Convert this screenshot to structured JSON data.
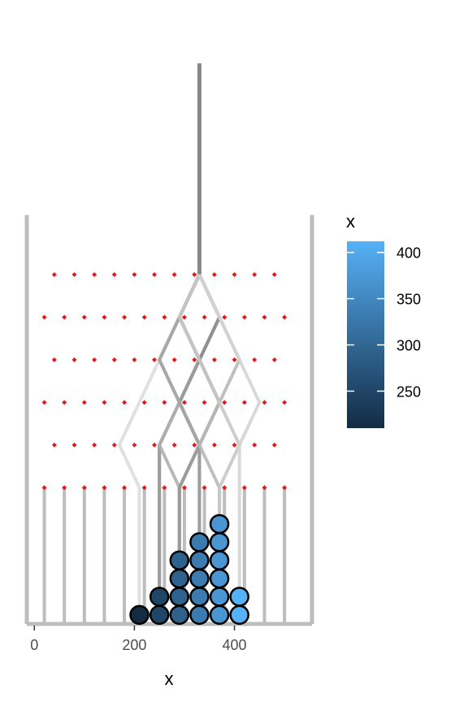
{
  "chart_data": {
    "type": "scatter",
    "title": "",
    "xlabel": "x",
    "ylabel": "",
    "xlim": [
      -15,
      555
    ],
    "ylim": [
      0,
      0.68
    ],
    "x_ticks": [
      0,
      200,
      400
    ],
    "grid": false,
    "pegs": {
      "color": "#e31a1c",
      "rows": [
        {
          "y": 0.615,
          "x": [
            40,
            80,
            120,
            160,
            200,
            240,
            280,
            320,
            360,
            400,
            440,
            480
          ]
        },
        {
          "y": 0.54,
          "x": [
            20,
            60,
            100,
            140,
            180,
            220,
            260,
            300,
            340,
            380,
            420,
            460,
            500
          ]
        },
        {
          "y": 0.465,
          "x": [
            40,
            80,
            120,
            160,
            200,
            240,
            280,
            320,
            360,
            400,
            440,
            480
          ]
        },
        {
          "y": 0.39,
          "x": [
            20,
            60,
            100,
            140,
            180,
            220,
            260,
            300,
            340,
            380,
            420,
            460,
            500
          ]
        },
        {
          "y": 0.315,
          "x": [
            40,
            80,
            120,
            160,
            200,
            240,
            280,
            320,
            360,
            400,
            440,
            480
          ]
        },
        {
          "y": 0.24,
          "x": [
            20,
            60,
            100,
            140,
            180,
            220,
            260,
            300,
            340,
            380,
            420,
            460,
            500
          ]
        }
      ]
    },
    "walls": {
      "x": [
        -15,
        555
      ],
      "top": 0.72
    },
    "bin_dividers": {
      "x": [
        20,
        60,
        100,
        140,
        180,
        220,
        260,
        300,
        340,
        380,
        420,
        460,
        500
      ],
      "top": 0.24
    },
    "ball_paths": {
      "entry_x": 330,
      "entry_top": 1.4,
      "paths": [
        [
          330,
          290,
          250,
          210,
          170,
          210
        ],
        [
          330,
          290,
          330,
          290,
          250,
          250
        ],
        [
          330,
          370,
          330,
          290,
          250,
          250
        ],
        [
          330,
          290,
          250,
          290,
          250,
          290
        ],
        [
          330,
          290,
          330,
          290,
          330,
          290
        ],
        [
          330,
          370,
          330,
          290,
          330,
          290
        ],
        [
          330,
          290,
          250,
          290,
          330,
          330
        ],
        [
          330,
          370,
          330,
          370,
          330,
          330
        ],
        [
          330,
          290,
          330,
          370,
          330,
          330
        ],
        [
          330,
          370,
          410,
          370,
          330,
          370
        ],
        [
          330,
          290,
          330,
          370,
          410,
          370
        ],
        [
          330,
          370,
          410,
          450,
          410,
          410
        ]
      ]
    },
    "points": [
      {
        "x": 210,
        "y": 0.016
      },
      {
        "x": 250,
        "y": 0.016
      },
      {
        "x": 250,
        "y": 0.048
      },
      {
        "x": 290,
        "y": 0.016
      },
      {
        "x": 290,
        "y": 0.048
      },
      {
        "x": 290,
        "y": 0.08
      },
      {
        "x": 290,
        "y": 0.112
      },
      {
        "x": 330,
        "y": 0.016
      },
      {
        "x": 330,
        "y": 0.048
      },
      {
        "x": 330,
        "y": 0.08
      },
      {
        "x": 330,
        "y": 0.112
      },
      {
        "x": 330,
        "y": 0.144
      },
      {
        "x": 370,
        "y": 0.016
      },
      {
        "x": 370,
        "y": 0.048
      },
      {
        "x": 370,
        "y": 0.08
      },
      {
        "x": 370,
        "y": 0.112
      },
      {
        "x": 370,
        "y": 0.144
      },
      {
        "x": 370,
        "y": 0.176
      },
      {
        "x": 410,
        "y": 0.016
      },
      {
        "x": 410,
        "y": 0.048
      }
    ],
    "color_scale": {
      "title": "x",
      "low": 210,
      "high": 410,
      "low_color": "#132b43",
      "high_color": "#56b1f7",
      "ticks": [
        250,
        300,
        350,
        400
      ],
      "placement": "right"
    }
  }
}
